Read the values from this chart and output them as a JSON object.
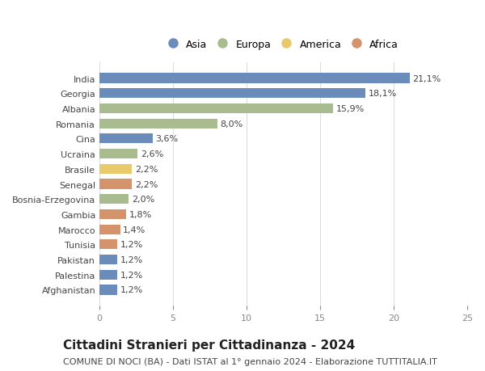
{
  "categories": [
    "India",
    "Georgia",
    "Albania",
    "Romania",
    "Cina",
    "Ucraina",
    "Brasile",
    "Senegal",
    "Bosnia-Erzegovina",
    "Gambia",
    "Marocco",
    "Tunisia",
    "Pakistan",
    "Palestina",
    "Afghanistan"
  ],
  "values": [
    21.1,
    18.1,
    15.9,
    8.0,
    3.6,
    2.6,
    2.2,
    2.2,
    2.0,
    1.8,
    1.4,
    1.2,
    1.2,
    1.2,
    1.2
  ],
  "labels": [
    "21,1%",
    "18,1%",
    "15,9%",
    "8,0%",
    "3,6%",
    "2,6%",
    "2,2%",
    "2,2%",
    "2,0%",
    "1,8%",
    "1,4%",
    "1,2%",
    "1,2%",
    "1,2%",
    "1,2%"
  ],
  "continents": [
    "Asia",
    "Asia",
    "Europa",
    "Europa",
    "Asia",
    "Europa",
    "America",
    "Africa",
    "Europa",
    "Africa",
    "Africa",
    "Africa",
    "Asia",
    "Asia",
    "Asia"
  ],
  "continent_colors": {
    "Asia": "#6b8cba",
    "Europa": "#a8bc8f",
    "America": "#e8c96b",
    "Africa": "#d4936b"
  },
  "legend_order": [
    "Asia",
    "Europa",
    "America",
    "Africa"
  ],
  "title": "Cittadini Stranieri per Cittadinanza - 2024",
  "subtitle": "COMUNE DI NOCI (BA) - Dati ISTAT al 1° gennaio 2024 - Elaborazione TUTTITALIA.IT",
  "xlim": [
    0,
    25
  ],
  "xticks": [
    0,
    5,
    10,
    15,
    20,
    25
  ],
  "background_color": "#ffffff",
  "grid_color": "#dddddd",
  "bar_height": 0.65,
  "title_fontsize": 11,
  "subtitle_fontsize": 8,
  "label_fontsize": 8,
  "tick_fontsize": 8,
  "legend_fontsize": 9
}
